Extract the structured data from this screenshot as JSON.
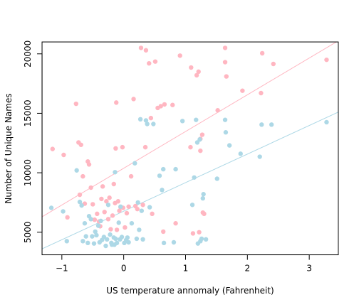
{
  "chart_data": {
    "type": "scatter",
    "title": "",
    "xlabel": "US temperature annomaly (Fahrenheit)",
    "ylabel": "Number of Unique Names",
    "xlim": [
      -1.32,
      3.47
    ],
    "ylim": [
      3100,
      21000
    ],
    "x_ticks": [
      -1,
      0,
      1,
      2,
      3
    ],
    "y_ticks": [
      5000,
      10000,
      15000,
      20000
    ],
    "grid": false,
    "legend": "none",
    "series": [
      {
        "color": "#ffb6c1",
        "points": [
          [
            -1.15,
            12000
          ],
          [
            -0.97,
            11500
          ],
          [
            -0.91,
            6250
          ],
          [
            -0.77,
            15800
          ],
          [
            -0.73,
            12550
          ],
          [
            -0.71,
            8150
          ],
          [
            -0.69,
            12350
          ],
          [
            -0.66,
            9700
          ],
          [
            -0.63,
            7400
          ],
          [
            -0.58,
            10950
          ],
          [
            -0.56,
            10700
          ],
          [
            -0.53,
            8750
          ],
          [
            -0.5,
            7350
          ],
          [
            -0.47,
            6050
          ],
          [
            -0.43,
            6550
          ],
          [
            -0.4,
            5900
          ],
          [
            -0.38,
            5500
          ],
          [
            -0.36,
            7800
          ],
          [
            -0.34,
            8850
          ],
          [
            -0.31,
            6700
          ],
          [
            -0.28,
            7600
          ],
          [
            -0.25,
            6100
          ],
          [
            -0.23,
            7900
          ],
          [
            -0.21,
            5250
          ],
          [
            -0.18,
            6400
          ],
          [
            -0.16,
            9050
          ],
          [
            -0.14,
            7450
          ],
          [
            -0.13,
            12050
          ],
          [
            -0.12,
            15900
          ],
          [
            -0.11,
            5200
          ],
          [
            -0.09,
            7600
          ],
          [
            -0.07,
            6800
          ],
          [
            -0.05,
            7100
          ],
          [
            -0.02,
            12150
          ],
          [
            -0.01,
            7050
          ],
          [
            0.02,
            5400
          ],
          [
            0.05,
            6600
          ],
          [
            0.08,
            7150
          ],
          [
            0.12,
            9700
          ],
          [
            0.16,
            16200
          ],
          [
            0.19,
            7200
          ],
          [
            0.22,
            6950
          ],
          [
            0.28,
            20500
          ],
          [
            0.31,
            7300
          ],
          [
            0.35,
            12150
          ],
          [
            0.36,
            20300
          ],
          [
            0.41,
            19200
          ],
          [
            0.44,
            14600
          ],
          [
            0.46,
            6550
          ],
          [
            0.51,
            19350
          ],
          [
            0.55,
            15450
          ],
          [
            0.6,
            15600
          ],
          [
            0.64,
            5050
          ],
          [
            0.66,
            15750
          ],
          [
            0.79,
            15700
          ],
          [
            0.84,
            5750
          ],
          [
            0.91,
            19850
          ],
          [
            1.08,
            12150
          ],
          [
            1.09,
            18850
          ],
          [
            1.12,
            4900
          ],
          [
            1.18,
            18200
          ],
          [
            1.21,
            18500
          ],
          [
            1.22,
            5000
          ],
          [
            1.24,
            12850
          ],
          [
            1.24,
            11850
          ],
          [
            1.27,
            13200
          ],
          [
            1.28,
            6650
          ],
          [
            1.3,
            6550
          ],
          [
            1.52,
            15250
          ],
          [
            1.64,
            20500
          ],
          [
            1.64,
            19300
          ],
          [
            1.66,
            18100
          ],
          [
            1.92,
            16900
          ],
          [
            2.22,
            16700
          ],
          [
            2.24,
            20050
          ],
          [
            2.42,
            19150
          ],
          [
            3.28,
            19500
          ]
        ]
      },
      {
        "color": "#add8e6",
        "points": [
          [
            -1.17,
            7050
          ],
          [
            -0.98,
            6750
          ],
          [
            -0.92,
            4250
          ],
          [
            -0.76,
            10200
          ],
          [
            -0.71,
            7550
          ],
          [
            -0.68,
            7250
          ],
          [
            -0.66,
            4250
          ],
          [
            -0.63,
            5750
          ],
          [
            -0.61,
            4650
          ],
          [
            -0.58,
            4100
          ],
          [
            -0.56,
            6350
          ],
          [
            -0.53,
            6100
          ],
          [
            -0.51,
            4650
          ],
          [
            -0.48,
            4050
          ],
          [
            -0.46,
            5050
          ],
          [
            -0.44,
            4750
          ],
          [
            -0.41,
            5550
          ],
          [
            -0.39,
            4150
          ],
          [
            -0.37,
            5950
          ],
          [
            -0.35,
            4350
          ],
          [
            -0.32,
            4600
          ],
          [
            -0.29,
            3850
          ],
          [
            -0.27,
            4400
          ],
          [
            -0.25,
            7300
          ],
          [
            -0.22,
            4800
          ],
          [
            -0.2,
            4100
          ],
          [
            -0.19,
            3950
          ],
          [
            -0.16,
            4550
          ],
          [
            -0.15,
            3950
          ],
          [
            -0.14,
            10050
          ],
          [
            -0.13,
            4450
          ],
          [
            -0.11,
            4100
          ],
          [
            -0.08,
            5800
          ],
          [
            -0.06,
            4400
          ],
          [
            -0.05,
            7150
          ],
          [
            -0.03,
            4600
          ],
          [
            0.01,
            4100
          ],
          [
            0.04,
            4350
          ],
          [
            0.06,
            4550
          ],
          [
            0.08,
            4150
          ],
          [
            0.13,
            5750
          ],
          [
            0.18,
            10800
          ],
          [
            0.21,
            4450
          ],
          [
            0.23,
            7500
          ],
          [
            0.25,
            5200
          ],
          [
            0.27,
            14500
          ],
          [
            0.29,
            6800
          ],
          [
            0.31,
            4400
          ],
          [
            0.36,
            14400
          ],
          [
            0.38,
            14100
          ],
          [
            0.42,
            7100
          ],
          [
            0.48,
            14100
          ],
          [
            0.58,
            9750
          ],
          [
            0.62,
            8550
          ],
          [
            0.64,
            10300
          ],
          [
            0.65,
            4100
          ],
          [
            0.81,
            4150
          ],
          [
            0.84,
            10300
          ],
          [
            0.95,
            14350
          ],
          [
            1.11,
            7300
          ],
          [
            1.14,
            9600
          ],
          [
            1.17,
            14450
          ],
          [
            1.19,
            12550
          ],
          [
            1.2,
            4050
          ],
          [
            1.23,
            12800
          ],
          [
            1.24,
            4250
          ],
          [
            1.26,
            4450
          ],
          [
            1.28,
            7850
          ],
          [
            1.29,
            8200
          ],
          [
            1.33,
            4400
          ],
          [
            1.51,
            9500
          ],
          [
            1.64,
            14450
          ],
          [
            1.65,
            13400
          ],
          [
            1.71,
            12300
          ],
          [
            1.89,
            11600
          ],
          [
            2.2,
            11350
          ],
          [
            2.23,
            14050
          ],
          [
            2.39,
            14050
          ],
          [
            3.28,
            14250
          ]
        ]
      }
    ],
    "fit_lines": [
      {
        "color": "#ffb6c1",
        "x": [
          -1.32,
          3.47
        ],
        "y": [
          6300,
          21100
        ]
      },
      {
        "color": "#add8e6",
        "x": [
          -1.32,
          3.47
        ],
        "y": [
          3600,
          15100
        ]
      }
    ]
  }
}
